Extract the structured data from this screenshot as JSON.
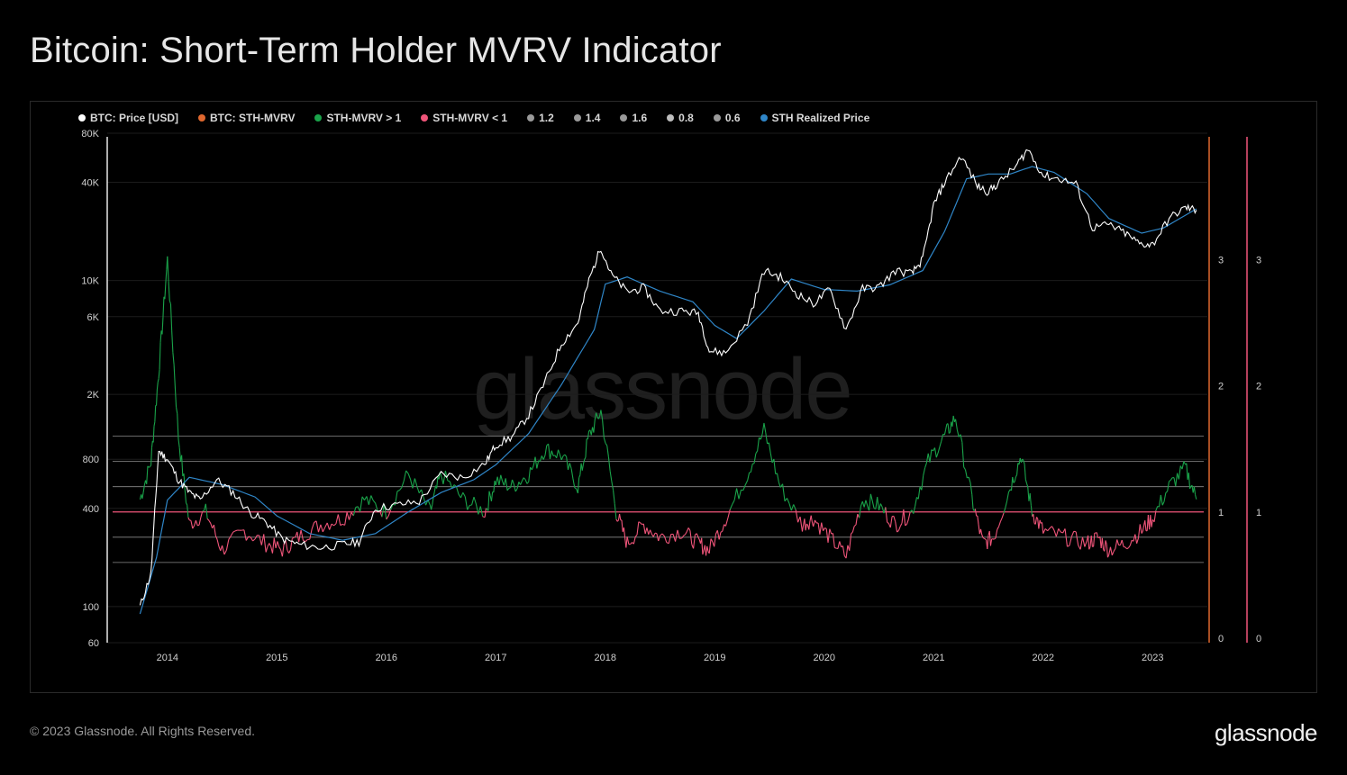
{
  "title": "Bitcoin: Short-Term Holder MVRV Indicator",
  "footer": {
    "copyright": "© 2023 Glassnode. All Rights Reserved.",
    "logo": "glassnode"
  },
  "watermark": "glassnode",
  "legend": [
    {
      "label": "BTC: Price [USD]",
      "color": "#ffffff"
    },
    {
      "label": "BTC: STH-MVRV",
      "color": "#e0682f"
    },
    {
      "label": "STH-MVRV > 1",
      "color": "#1aa34a"
    },
    {
      "label": "STH-MVRV < 1",
      "color": "#f0557a"
    },
    {
      "label": "1.2",
      "color": "#9a9a9a"
    },
    {
      "label": "1.4",
      "color": "#9a9a9a"
    },
    {
      "label": "1.6",
      "color": "#9a9a9a"
    },
    {
      "label": "0.8",
      "color": "#bdbdbd"
    },
    {
      "label": "0.6",
      "color": "#9a9a9a"
    },
    {
      "label": "STH Realized Price",
      "color": "#2f86c8"
    }
  ],
  "chart_data": {
    "type": "line",
    "title": "Bitcoin: Short-Term Holder MVRV Indicator",
    "x_ticks": [
      "2014",
      "2015",
      "2016",
      "2017",
      "2018",
      "2019",
      "2020",
      "2021",
      "2022",
      "2023"
    ],
    "y_left": {
      "scale": "log",
      "ticks": [
        "80K",
        "40K",
        "10K",
        "6K",
        "2K",
        "800",
        "400",
        "100",
        "60"
      ],
      "range": [
        60,
        80000
      ]
    },
    "y_right": {
      "ticks": [
        "3",
        "2",
        "1",
        "0"
      ],
      "range": [
        0,
        4
      ]
    },
    "thresholds": [
      1.6,
      1.4,
      1.2,
      1.0,
      0.8,
      0.6
    ],
    "series": [
      {
        "name": "BTC: Price [USD]",
        "x": [
          2013.75,
          2013.85,
          2013.92,
          2014.0,
          2014.1,
          2014.2,
          2014.3,
          2014.45,
          2014.6,
          2014.75,
          2014.9,
          2015.05,
          2015.2,
          2015.4,
          2015.6,
          2015.75,
          2015.9,
          2016.1,
          2016.3,
          2016.5,
          2016.7,
          2016.9,
          2017.0,
          2017.15,
          2017.3,
          2017.45,
          2017.6,
          2017.75,
          2017.85,
          2017.96,
          2018.05,
          2018.2,
          2018.35,
          2018.5,
          2018.7,
          2018.85,
          2018.95,
          2019.1,
          2019.3,
          2019.45,
          2019.6,
          2019.75,
          2019.9,
          2020.05,
          2020.2,
          2020.35,
          2020.5,
          2020.65,
          2020.8,
          2020.9,
          2021.0,
          2021.1,
          2021.25,
          2021.4,
          2021.5,
          2021.6,
          2021.75,
          2021.86,
          2022.0,
          2022.15,
          2022.3,
          2022.45,
          2022.6,
          2022.75,
          2022.88,
          2023.0,
          2023.15,
          2023.3,
          2023.4
        ],
        "values": [
          100,
          160,
          900,
          800,
          600,
          500,
          450,
          600,
          500,
          380,
          330,
          260,
          240,
          230,
          240,
          250,
          400,
          420,
          440,
          650,
          620,
          750,
          980,
          1100,
          1500,
          2400,
          4100,
          5500,
          10000,
          16000,
          11000,
          8500,
          9000,
          6500,
          6500,
          6300,
          3700,
          3600,
          5500,
          11500,
          10500,
          8300,
          7200,
          8800,
          5000,
          8900,
          9100,
          11500,
          11000,
          13500,
          29000,
          40000,
          58000,
          38000,
          35000,
          40000,
          50000,
          64000,
          44000,
          42000,
          39000,
          21000,
          22000,
          19500,
          16800,
          16600,
          24000,
          28000,
          27000
        ]
      },
      {
        "name": "STH Realized Price",
        "x": [
          2013.75,
          2013.9,
          2014.0,
          2014.2,
          2014.5,
          2014.8,
          2015.0,
          2015.3,
          2015.6,
          2015.9,
          2016.2,
          2016.5,
          2016.8,
          2017.0,
          2017.3,
          2017.6,
          2017.9,
          2018.0,
          2018.2,
          2018.5,
          2018.8,
          2019.0,
          2019.2,
          2019.45,
          2019.7,
          2020.0,
          2020.3,
          2020.6,
          2020.9,
          2021.1,
          2021.3,
          2021.5,
          2021.7,
          2021.9,
          2022.1,
          2022.4,
          2022.6,
          2022.9,
          2023.1,
          2023.4
        ],
        "values": [
          90,
          200,
          450,
          620,
          560,
          470,
          360,
          280,
          255,
          280,
          380,
          500,
          600,
          740,
          1150,
          2300,
          5000,
          9500,
          10500,
          8600,
          7400,
          5300,
          4400,
          6500,
          10200,
          8800,
          8600,
          9400,
          11500,
          20000,
          42000,
          45000,
          45000,
          50000,
          46000,
          34000,
          24000,
          19500,
          21000,
          27500
        ]
      },
      {
        "name": "BTC: STH-MVRV",
        "x": [
          2013.75,
          2013.85,
          2013.92,
          2014.0,
          2014.1,
          2014.2,
          2014.35,
          2014.5,
          2014.7,
          2014.9,
          2015.05,
          2015.2,
          2015.4,
          2015.6,
          2015.8,
          2016.0,
          2016.2,
          2016.4,
          2016.5,
          2016.7,
          2016.9,
          2017.0,
          2017.15,
          2017.3,
          2017.45,
          2017.6,
          2017.75,
          2017.85,
          2017.96,
          2018.1,
          2018.2,
          2018.35,
          2018.5,
          2018.7,
          2018.85,
          2018.95,
          2019.1,
          2019.3,
          2019.45,
          2019.6,
          2019.8,
          2019.9,
          2020.05,
          2020.2,
          2020.35,
          2020.5,
          2020.65,
          2020.8,
          2020.95,
          2021.1,
          2021.2,
          2021.35,
          2021.45,
          2021.55,
          2021.7,
          2021.8,
          2021.9,
          2022.0,
          2022.2,
          2022.4,
          2022.5,
          2022.6,
          2022.75,
          2022.9,
          2023.0,
          2023.15,
          2023.3,
          2023.4
        ],
        "values": [
          1.1,
          1.4,
          2.1,
          3.0,
          1.6,
          0.9,
          1.0,
          0.7,
          0.85,
          0.75,
          0.7,
          0.8,
          0.9,
          0.95,
          1.1,
          1.0,
          1.3,
          1.0,
          1.3,
          1.1,
          1.0,
          1.25,
          1.2,
          1.3,
          1.5,
          1.45,
          1.2,
          1.6,
          1.8,
          1.0,
          0.75,
          0.9,
          0.8,
          0.85,
          0.75,
          0.7,
          0.95,
          1.3,
          1.65,
          1.2,
          0.9,
          0.95,
          0.8,
          0.65,
          1.1,
          1.05,
          0.9,
          1.0,
          1.4,
          1.6,
          1.75,
          1.1,
          0.75,
          0.8,
          1.2,
          1.45,
          1.0,
          0.85,
          0.8,
          0.75,
          0.8,
          0.7,
          0.75,
          0.85,
          0.95,
          1.2,
          1.35,
          1.1
        ]
      }
    ]
  }
}
